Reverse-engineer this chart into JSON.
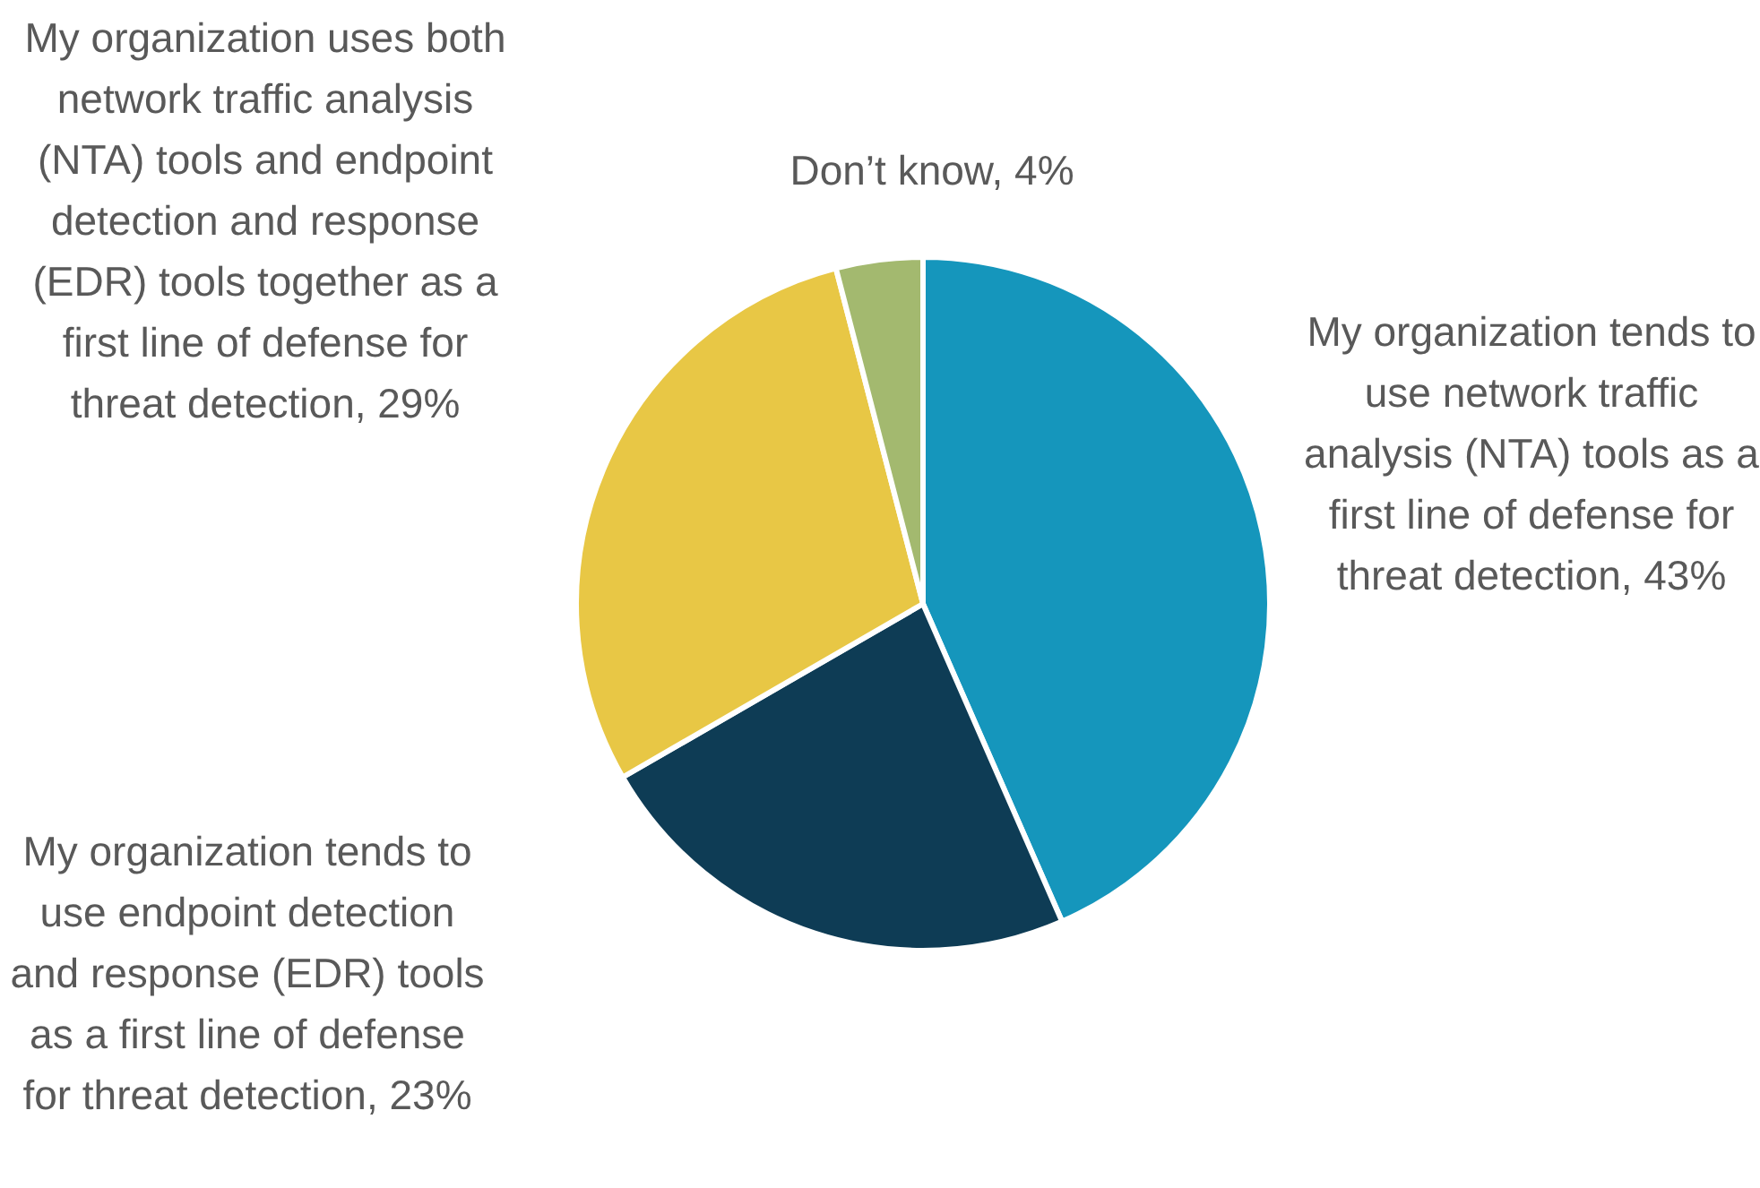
{
  "chart_data": {
    "type": "pie",
    "categories": [
      "My organization tends to use network traffic analysis (NTA) tools as a first line of defense for threat detection",
      "My organization tends to use endpoint detection and response (EDR) tools as a first line of defense for threat detection",
      "My organization uses both network traffic analysis (NTA) tools and endpoint detection and response (EDR) tools together as a first line of defense for threat detection",
      "Don’t know"
    ],
    "values": [
      43,
      23,
      29,
      4
    ],
    "value_labels": [
      "43%",
      "23%",
      "29%",
      "4%"
    ],
    "colors": [
      "#1596bc",
      "#0e3c55",
      "#e8c745",
      "#a3b96f"
    ],
    "legend": false
  }
}
